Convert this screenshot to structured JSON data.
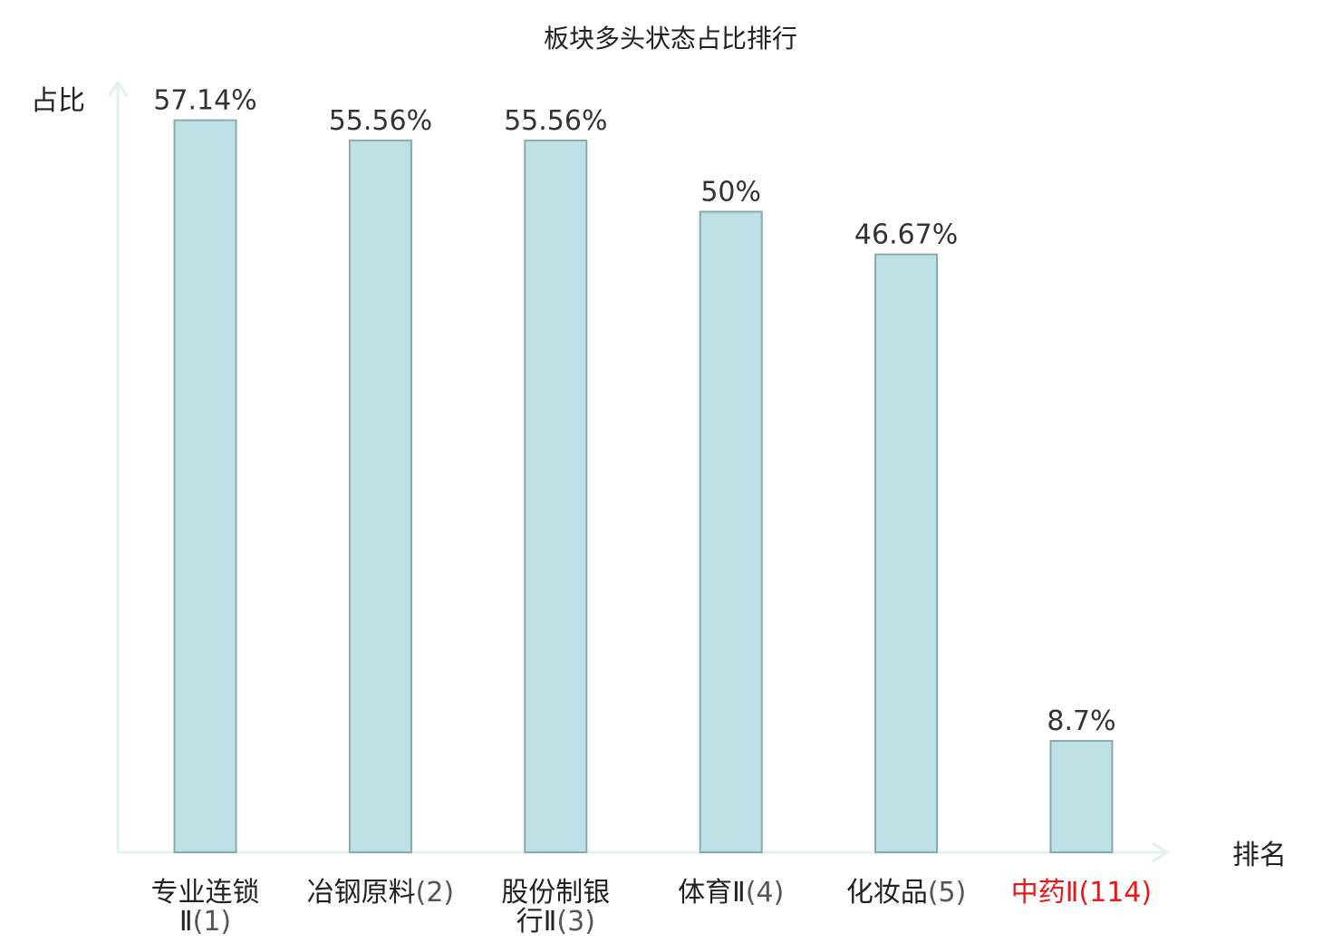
{
  "chart_data": {
    "type": "bar",
    "title": "板块多头状态占比排行",
    "ylabel": "占比",
    "xlabel": "排名",
    "ylim": [
      0,
      60
    ],
    "grid": false,
    "categories": [
      {
        "name_lines": [
          "专业连锁",
          "Ⅱ"
        ],
        "rank": "(1)",
        "highlight": false
      },
      {
        "name_lines": [
          "冶钢原料"
        ],
        "rank": "(2)",
        "highlight": false
      },
      {
        "name_lines": [
          "股份制银",
          "行Ⅱ"
        ],
        "rank": "(3)",
        "highlight": false
      },
      {
        "name_lines": [
          "体育Ⅱ"
        ],
        "rank": "(4)",
        "highlight": false
      },
      {
        "name_lines": [
          "化妆品"
        ],
        "rank": "(5)",
        "highlight": false
      },
      {
        "name_lines": [
          "中药Ⅱ"
        ],
        "rank": "(114)",
        "highlight": true
      }
    ],
    "values": [
      57.14,
      55.56,
      55.56,
      50,
      46.67,
      8.7
    ],
    "value_labels": [
      "57.14%",
      "55.56%",
      "55.56%",
      "50%",
      "46.67%",
      "8.7%"
    ],
    "colors": {
      "bar_fill": "#bde1e4",
      "bar_stroke": "#8aa9ab",
      "axis": "#e2f2ef",
      "highlight_text": "#e8191a"
    }
  }
}
